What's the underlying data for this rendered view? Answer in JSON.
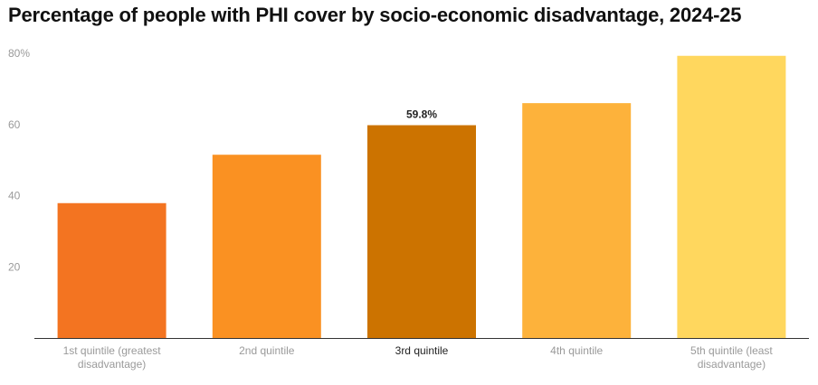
{
  "chart_data": {
    "type": "bar",
    "title": "Percentage of people with PHI cover by socio-economic disadvantage, 2024-25",
    "xlabel": "",
    "ylabel": "",
    "ylim": [
      0,
      80
    ],
    "yticks": [
      {
        "value": 20,
        "label": "20"
      },
      {
        "value": 40,
        "label": "40"
      },
      {
        "value": 60,
        "label": "60"
      },
      {
        "value": 80,
        "label": "80%"
      }
    ],
    "grid": false,
    "categories": [
      [
        "1st quintile (greatest",
        "disadvantage)"
      ],
      [
        "2nd quintile"
      ],
      [
        "3rd quintile"
      ],
      [
        "4th quintile"
      ],
      [
        "5th quintile (least",
        "disadvantage)"
      ]
    ],
    "values": [
      37.9,
      51.5,
      59.8,
      66.0,
      79.3
    ],
    "colors": [
      "#f37421",
      "#fa9122",
      "#cc7300",
      "#fdb23b",
      "#ffd75e"
    ],
    "highlight_index": 2,
    "data_labels": [
      {
        "index": 2,
        "text": "59.8%"
      }
    ]
  }
}
